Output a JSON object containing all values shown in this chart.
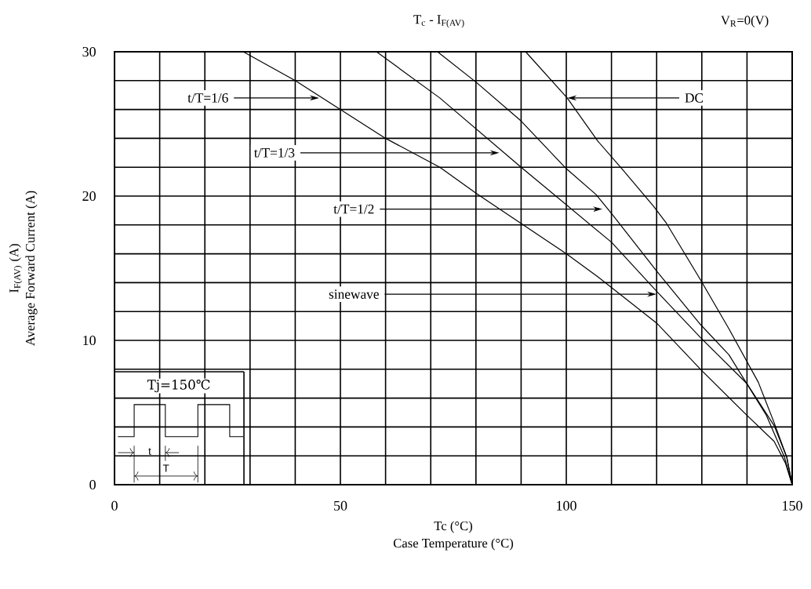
{
  "chart_data": {
    "type": "line",
    "title": "T$_{c}$ - I$_{F(AV)}$",
    "subtitle": "V$_{R}$=0(V)",
    "xlabel": "Tc (°C)",
    "ylabel": "I$_{F(AV)}$ (A)",
    "xlim": [
      0,
      150
    ],
    "ylim": [
      0,
      30
    ],
    "xticks": [
      0,
      {
        "value": 10,
        "label": null
      },
      {
        "value": 20,
        "label": null
      },
      {
        "value": 30,
        "label": null
      },
      {
        "value": 40,
        "label": null
      },
      50,
      {
        "value": 60,
        "label": null
      },
      {
        "value": 70,
        "label": null
      },
      {
        "value": 80,
        "label": null
      },
      {
        "value": 90,
        "label": null
      },
      100,
      {
        "value": 110,
        "label": null
      },
      {
        "value": 120,
        "label": null
      },
      {
        "value": 130,
        "label": null
      },
      {
        "value": 140,
        "label": null
      },
      150
    ],
    "yticks": [
      0,
      {
        "value": 2,
        "label": null
      },
      {
        "value": 4,
        "label": null
      },
      {
        "value": 6,
        "label": null
      },
      {
        "value": 8,
        "label": null
      },
      10,
      {
        "value": 12,
        "label": null
      },
      {
        "value": 14,
        "label": null
      },
      {
        "value": 16,
        "label": null
      },
      {
        "value": 18,
        "label": null
      },
      20,
      {
        "value": 22,
        "label": null
      },
      {
        "value": 24,
        "label": null
      },
      {
        "value": 26,
        "label": null
      },
      {
        "value": 28,
        "label": null
      },
      30
    ],
    "grid": true,
    "line_style": "solid",
    "series": [
      {
        "color": "#000000",
        "x": [
          28.5,
          40,
          50,
          60,
          72,
          80,
          90,
          100,
          107,
          120,
          130,
          140,
          146,
          148.5,
          150
        ],
        "values": [
          30,
          28,
          26,
          24,
          22,
          20.2,
          18.1,
          16,
          14.4,
          11.2,
          7.9,
          4.8,
          3,
          1.5,
          0
        ]
      },
      {
        "color": "#000000",
        "x": [
          58,
          72,
          90,
          110,
          120,
          129.7,
          140,
          146,
          148.8,
          150
        ],
        "values": [
          30,
          26.8,
          22,
          16.8,
          13.4,
          10.2,
          7,
          4.1,
          1.9,
          0
        ]
      },
      {
        "color": "#000000",
        "x": [
          71.5,
          80,
          90,
          100,
          106.6,
          110,
          120,
          129.7,
          136,
          144.3,
          148.3,
          150
        ],
        "values": [
          30,
          27.9,
          25.2,
          21.9,
          20.1,
          18.8,
          14.8,
          11.1,
          9,
          4.8,
          1.9,
          0
        ]
      },
      {
        "color": "#000000",
        "x": [
          91,
          100.2,
          107,
          112.3,
          119.3,
          122.2,
          129.7,
          136,
          142.5,
          146,
          148.8,
          150
        ],
        "values": [
          30,
          26.8,
          23.8,
          21.9,
          19.3,
          18.1,
          14.2,
          10.8,
          7.1,
          4.3,
          1.9,
          0
        ]
      }
    ],
    "annotations": [
      {
        "text": "t/T=1/6",
        "x": 45.3,
        "y": 26.8
      },
      {
        "text": "t/T=1/3",
        "x": 85.2,
        "y": 23
      },
      {
        "text": "t/T=1/2",
        "x": 108,
        "y": 19.1
      },
      {
        "text": "sinewave",
        "x": 120,
        "y": 13.2
      },
      {
        "text": "DC",
        "x": 100.2,
        "y": 26.8
      },
      "Case Temperature (°C)",
      "Average Forward Current (A)",
      "Tj=150℃",
      "t",
      "T"
    ]
  }
}
